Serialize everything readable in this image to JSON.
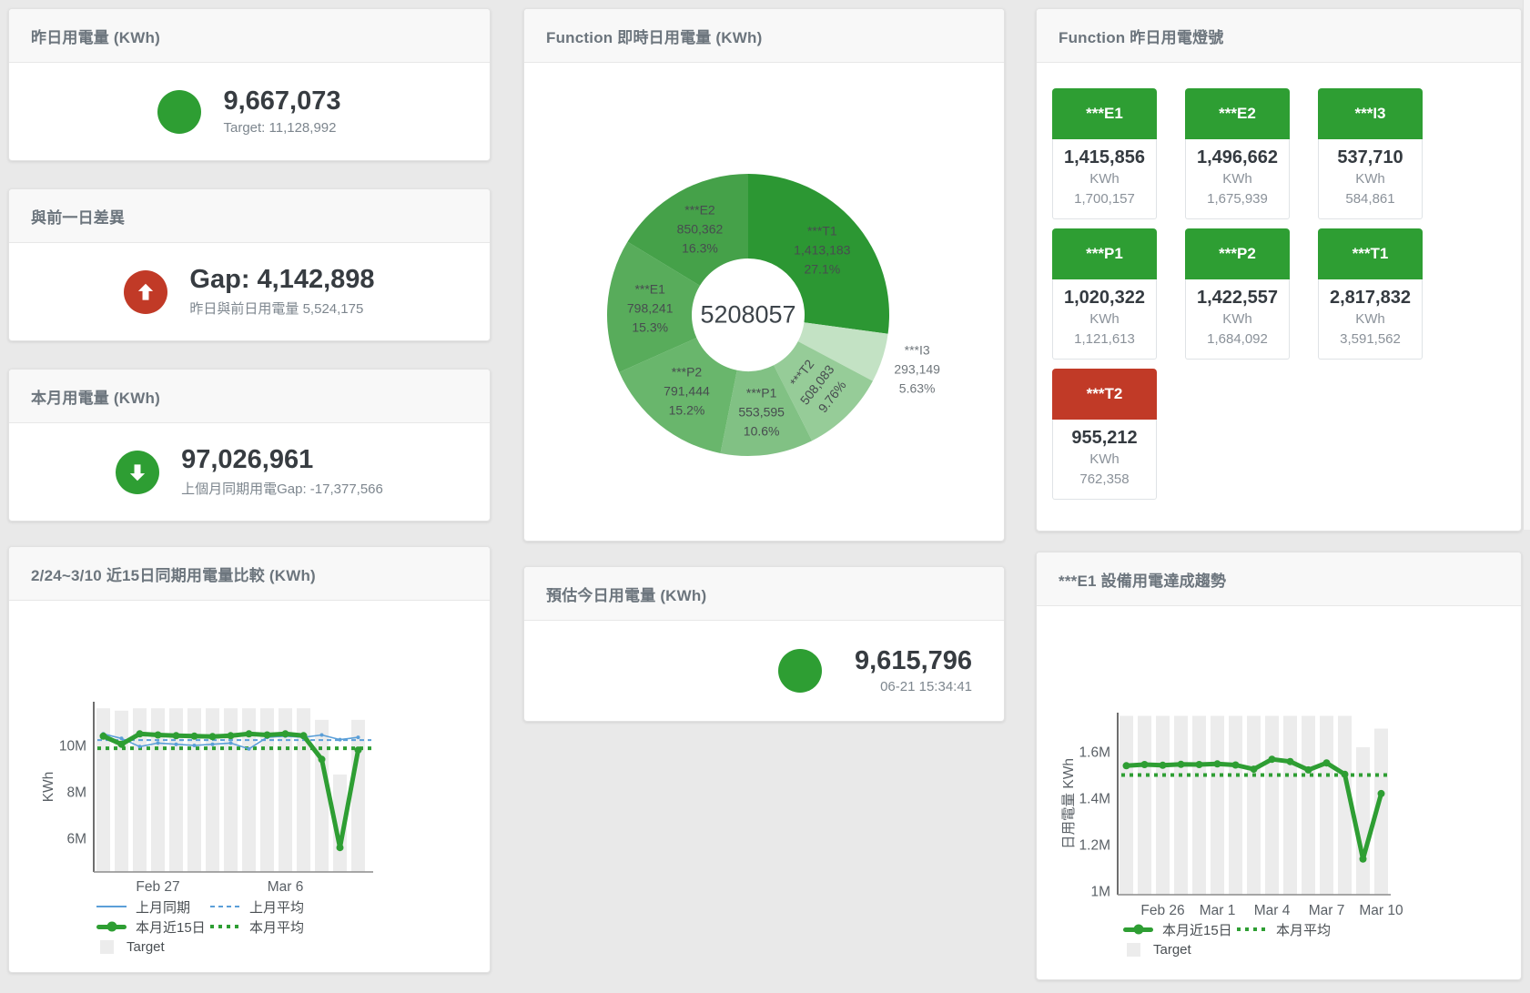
{
  "colors": {
    "green": "#2e9e33",
    "red": "#c13a27",
    "blue": "#5b9fd8",
    "target_gray": "#ececec"
  },
  "cards": {
    "yesterday": {
      "title": "昨日用電量 (KWh)",
      "value": "9,667,073",
      "subtitle": "Target: 11,128,992"
    },
    "gap_prev_day": {
      "title": "與前一日差異",
      "value": "Gap: 4,142,898",
      "subtitle": "昨日與前日用電量 5,524,175"
    },
    "month": {
      "title": "本月用電量 (KWh)",
      "value": "97,026,961",
      "subtitle": "上個月同期用電Gap: -17,377,566"
    },
    "today_estimate": {
      "title": "預估今日用電量 (KWh)",
      "value": "9,615,796",
      "subtitle": "06-21 15:34:41"
    },
    "realtime_donut": {
      "title": "Function 即時日用電量 (KWh)"
    },
    "lamp_status": {
      "title": "Function 昨日用電燈號"
    },
    "compare": {
      "title": "2/24~3/10 近15日同期用電量比較 (KWh)"
    },
    "trend": {
      "title": "***E1 設備用電達成趨勢"
    }
  },
  "lamp_tiles": [
    {
      "label": "***E1",
      "value": "1,415,856",
      "unit": "KWh",
      "target": "1,700,157",
      "status": "green"
    },
    {
      "label": "***E2",
      "value": "1,496,662",
      "unit": "KWh",
      "target": "1,675,939",
      "status": "green"
    },
    {
      "label": "***I3",
      "value": "537,710",
      "unit": "KWh",
      "target": "584,861",
      "status": "green"
    },
    {
      "label": "***P1",
      "value": "1,020,322",
      "unit": "KWh",
      "target": "1,121,613",
      "status": "green"
    },
    {
      "label": "***P2",
      "value": "1,422,557",
      "unit": "KWh",
      "target": "1,684,092",
      "status": "green"
    },
    {
      "label": "***T1",
      "value": "2,817,832",
      "unit": "KWh",
      "target": "3,591,562",
      "status": "green"
    },
    {
      "label": "***T2",
      "value": "955,212",
      "unit": "KWh",
      "target": "762,358",
      "status": "red"
    }
  ],
  "chart_data": [
    {
      "type": "pie",
      "title": "Function 即時日用電量 (KWh)",
      "center_total": "5208057",
      "slices": [
        {
          "name": "***T1",
          "value": 1413183,
          "value_text": "1,413,183",
          "pct_text": "27.1%",
          "color": "#2c9733"
        },
        {
          "name": "***I3",
          "value": 293149,
          "value_text": "293,149",
          "pct_text": "5.63%",
          "color": "#c3e2c4",
          "label_outside": true
        },
        {
          "name": "***T2",
          "value": 508083,
          "value_text": "508,083",
          "pct_text": "9.76%",
          "color": "#96cc98",
          "label_rotate": -52
        },
        {
          "name": "***P1",
          "value": 553595,
          "value_text": "553,595",
          "pct_text": "10.6%",
          "color": "#81c184"
        },
        {
          "name": "***P2",
          "value": 791444,
          "value_text": "791,444",
          "pct_text": "15.2%",
          "color": "#69b66c"
        },
        {
          "name": "***E1",
          "value": 798241,
          "value_text": "798,241",
          "pct_text": "15.3%",
          "color": "#58ac5b"
        },
        {
          "name": "***E2",
          "value": 850362,
          "value_text": "850,362",
          "pct_text": "16.3%",
          "color": "#45a149"
        }
      ]
    },
    {
      "type": "line",
      "title": "2/24~3/10 近15日同期用電量比較 (KWh)",
      "ylabel": "KWh",
      "ylim": [
        4550000,
        11750000
      ],
      "grid": false,
      "legend_position": "bottom",
      "yticks": [
        {
          "value": 10000000,
          "label": "10M"
        },
        {
          "value": 8000000,
          "label": "8M"
        },
        {
          "value": 6000000,
          "label": "6M"
        }
      ],
      "xticks": [
        {
          "index": 3,
          "label": "Feb 27"
        },
        {
          "index": 10,
          "label": "Mar 6"
        }
      ],
      "series": [
        {
          "name": "Target",
          "type": "bar",
          "color": "#ececec",
          "values": [
            11600000,
            11500000,
            11600000,
            11600000,
            11600000,
            11600000,
            11600000,
            11600000,
            11600000,
            11600000,
            11600000,
            11600000,
            11100000,
            8750000,
            11100000
          ]
        },
        {
          "name": "上月同期",
          "type": "line",
          "color": "#5b9fd8",
          "values": [
            10500000,
            10300000,
            9950000,
            10100000,
            10050000,
            10000000,
            10050000,
            10100000,
            9850000,
            10350000,
            10400000,
            10350000,
            10450000,
            10250000,
            10350000
          ]
        },
        {
          "name": "上月平均",
          "type": "dashed",
          "color": "#5b9fd8",
          "value": 10230000
        },
        {
          "name": "本月近15日",
          "type": "thick",
          "color": "#2e9e33",
          "values": [
            10400000,
            10050000,
            10500000,
            10450000,
            10420000,
            10400000,
            10380000,
            10420000,
            10500000,
            10450000,
            10500000,
            10420000,
            9400000,
            5600000,
            9800000
          ]
        },
        {
          "name": "本月平均",
          "type": "dotted",
          "color": "#2e9e33",
          "value": 9880000
        }
      ],
      "legend_rows": [
        [
          "上月同期",
          "上月平均"
        ],
        [
          "本月近15日",
          "本月平均"
        ],
        [
          "Target"
        ]
      ]
    },
    {
      "type": "line",
      "title": "***E1 設備用電達成趨勢",
      "ylabel": "日用電量 KWh",
      "ylim": [
        985000,
        1775000
      ],
      "grid": false,
      "legend_position": "bottom",
      "yticks": [
        {
          "value": 1600000,
          "label": "1.6M"
        },
        {
          "value": 1400000,
          "label": "1.4M"
        },
        {
          "value": 1200000,
          "label": "1.2M"
        },
        {
          "value": 1000000,
          "label": "1M"
        }
      ],
      "xticks": [
        {
          "index": 2,
          "label": "Feb 26"
        },
        {
          "index": 5,
          "label": "Mar 1"
        },
        {
          "index": 8,
          "label": "Mar 4"
        },
        {
          "index": 11,
          "label": "Mar 7"
        },
        {
          "index": 14,
          "label": "Mar 10"
        }
      ],
      "series": [
        {
          "name": "Target",
          "type": "bar",
          "color": "#ececec",
          "values": [
            1755000,
            1755000,
            1755000,
            1755000,
            1755000,
            1755000,
            1755000,
            1755000,
            1755000,
            1755000,
            1755000,
            1755000,
            1755000,
            1620000,
            1700000
          ]
        },
        {
          "name": "本月近15日",
          "type": "thick",
          "color": "#2e9e33",
          "values": [
            1540000,
            1545000,
            1542000,
            1546000,
            1545000,
            1548000,
            1543000,
            1525000,
            1568000,
            1558000,
            1522000,
            1552000,
            1503000,
            1138000,
            1420000
          ]
        },
        {
          "name": "本月平均",
          "type": "dotted",
          "color": "#2e9e33",
          "value": 1500000
        }
      ],
      "legend_rows": [
        [
          "本月近15日",
          "本月平均"
        ],
        [
          "Target"
        ]
      ]
    }
  ]
}
